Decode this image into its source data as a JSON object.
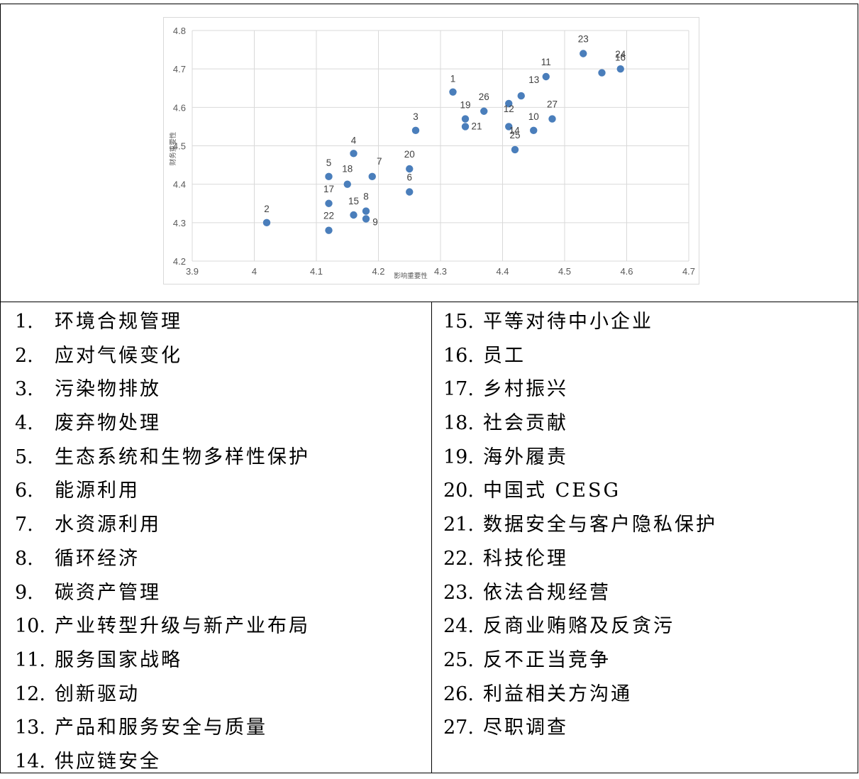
{
  "chart_data": {
    "type": "scatter",
    "xlabel": "影响重要性",
    "ylabel": "财务重要性",
    "xlim": [
      3.9,
      4.7
    ],
    "ylim": [
      4.2,
      4.8
    ],
    "xticks": [
      "3.9",
      "4",
      "4.1",
      "4.2",
      "4.3",
      "4.4",
      "4.5",
      "4.6",
      "4.7"
    ],
    "yticks": [
      "4.2",
      "4.3",
      "4.4",
      "4.5",
      "4.6",
      "4.7",
      "4.8"
    ],
    "grid": true,
    "marker_color": "#4a7ebb",
    "points": [
      {
        "label": "1",
        "x": 4.32,
        "y": 4.64
      },
      {
        "label": "2",
        "x": 4.02,
        "y": 4.3
      },
      {
        "label": "3",
        "x": 4.26,
        "y": 4.54
      },
      {
        "label": "4",
        "x": 4.16,
        "y": 4.48
      },
      {
        "label": "5",
        "x": 4.12,
        "y": 4.42
      },
      {
        "label": "6",
        "x": 4.25,
        "y": 4.38
      },
      {
        "label": "7",
        "x": 4.19,
        "y": 4.42
      },
      {
        "label": "8",
        "x": 4.18,
        "y": 4.33
      },
      {
        "label": "9",
        "x": 4.18,
        "y": 4.31
      },
      {
        "label": "10",
        "x": 4.45,
        "y": 4.54
      },
      {
        "label": "11",
        "x": 4.47,
        "y": 4.68
      },
      {
        "label": "12",
        "x": 4.41,
        "y": 4.61
      },
      {
        "label": "13",
        "x": 4.43,
        "y": 4.63
      },
      {
        "label": "14",
        "x": 4.41,
        "y": 4.55
      },
      {
        "label": "15",
        "x": 4.16,
        "y": 4.32
      },
      {
        "label": "16",
        "x": 4.56,
        "y": 4.69
      },
      {
        "label": "17",
        "x": 4.12,
        "y": 4.35
      },
      {
        "label": "18",
        "x": 4.15,
        "y": 4.4
      },
      {
        "label": "19",
        "x": 4.34,
        "y": 4.57
      },
      {
        "label": "20",
        "x": 4.25,
        "y": 4.44
      },
      {
        "label": "21",
        "x": 4.34,
        "y": 4.55
      },
      {
        "label": "22",
        "x": 4.12,
        "y": 4.28
      },
      {
        "label": "23",
        "x": 4.53,
        "y": 4.74
      },
      {
        "label": "24",
        "x": 4.59,
        "y": 4.7
      },
      {
        "label": "25",
        "x": 4.42,
        "y": 4.49
      },
      {
        "label": "26",
        "x": 4.37,
        "y": 4.59
      },
      {
        "label": "27",
        "x": 4.48,
        "y": 4.57
      }
    ]
  },
  "legend_left": [
    {
      "num": "1.",
      "text": "环境合规管理"
    },
    {
      "num": "2.",
      "text": "应对气候变化"
    },
    {
      "num": "3.",
      "text": "污染物排放"
    },
    {
      "num": "4.",
      "text": "废弃物处理"
    },
    {
      "num": "5.",
      "text": "生态系统和生物多样性保护"
    },
    {
      "num": "6.",
      "text": "能源利用"
    },
    {
      "num": "7.",
      "text": "水资源利用"
    },
    {
      "num": "8.",
      "text": "循环经济"
    },
    {
      "num": "9.",
      "text": "碳资产管理"
    },
    {
      "num": "10.",
      "text": "产业转型升级与新产业布局"
    },
    {
      "num": "11.",
      "text": "服务国家战略"
    },
    {
      "num": "12.",
      "text": "创新驱动"
    },
    {
      "num": "13.",
      "text": "产品和服务安全与质量"
    },
    {
      "num": "14.",
      "text": "供应链安全"
    }
  ],
  "legend_right": [
    {
      "num": "15.",
      "text": "平等对待中小企业"
    },
    {
      "num": "16.",
      "text": "员工"
    },
    {
      "num": "17.",
      "text": "乡村振兴"
    },
    {
      "num": "18.",
      "text": "社会贡献"
    },
    {
      "num": "19.",
      "text": "海外履责"
    },
    {
      "num": "20.",
      "text": "中国式 CESG"
    },
    {
      "num": "21.",
      "text": "数据安全与客户隐私保护"
    },
    {
      "num": "22.",
      "text": "科技伦理"
    },
    {
      "num": "23.",
      "text": "依法合规经营"
    },
    {
      "num": "24.",
      "text": "反商业贿赂及反贪污"
    },
    {
      "num": "25.",
      "text": "反不正当竞争"
    },
    {
      "num": "26.",
      "text": "利益相关方沟通"
    },
    {
      "num": "27.",
      "text": "尽职调查"
    }
  ]
}
